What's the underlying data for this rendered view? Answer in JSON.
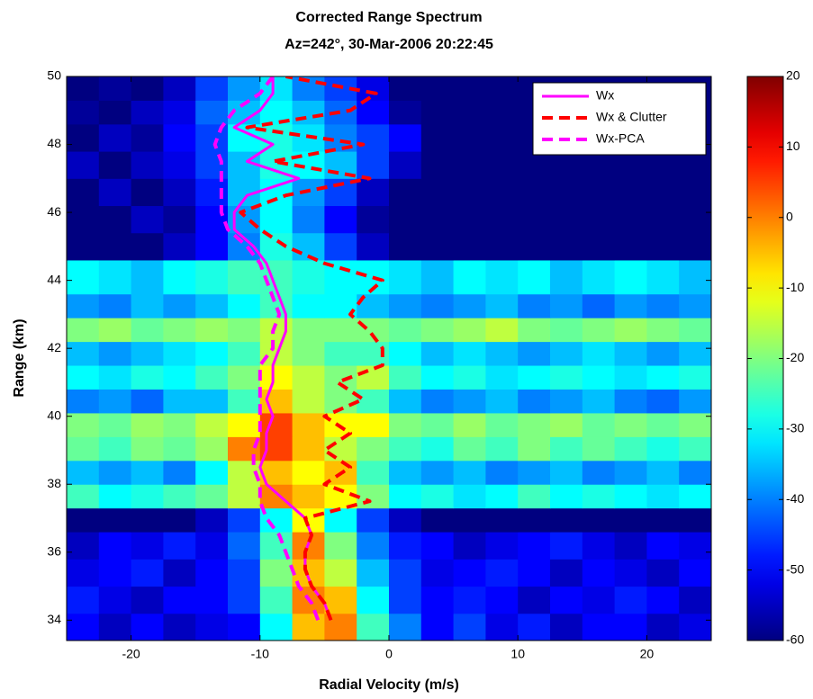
{
  "chart_data": {
    "type": "heatmap",
    "title": "Corrected Range Spectrum",
    "subtitle": "Az=242°, 30-Mar-2006 20:22:45",
    "x_label": "Radial Velocity (m/s)",
    "y_label": "Range (km)",
    "xlim": [
      -25,
      25
    ],
    "xticks": [
      -20,
      -10,
      0,
      10,
      20
    ],
    "ylim": [
      33.4,
      50
    ],
    "yticks": [
      34,
      36,
      38,
      40,
      42,
      44,
      46,
      48,
      50
    ],
    "colormap": "jet",
    "clim": [
      -60,
      20
    ],
    "cticks": [
      -60,
      -50,
      -40,
      -30,
      -20,
      -10,
      0,
      10,
      20
    ],
    "xbins": [
      -25,
      -22.5,
      -20,
      -17.5,
      -15,
      -12.5,
      -10,
      -7.5,
      -5,
      -2.5,
      0,
      2.5,
      5,
      7.5,
      10,
      12.5,
      15,
      17.5,
      20,
      22.5,
      25
    ],
    "ybins": [
      33.4,
      34.2,
      35,
      35.8,
      36.6,
      37.3,
      38,
      38.7,
      39.4,
      40.1,
      40.8,
      41.5,
      42.2,
      42.9,
      43.6,
      44.6,
      45.4,
      46.2,
      47,
      47.8,
      48.6,
      49.3,
      50
    ],
    "z": [
      [
        -50,
        -55,
        -50,
        -55,
        -52,
        -50,
        -30,
        -5,
        0,
        -25,
        -40,
        -50,
        -45,
        -52,
        -48,
        -55,
        -50,
        -50,
        -55,
        -52
      ],
      [
        -48,
        -52,
        -55,
        -50,
        -50,
        -45,
        -25,
        0,
        -5,
        -30,
        -45,
        -50,
        -48,
        -50,
        -55,
        -50,
        -52,
        -48,
        -50,
        -55
      ],
      [
        -52,
        -50,
        -48,
        -55,
        -50,
        -45,
        -20,
        -5,
        -15,
        -35,
        -45,
        -52,
        -50,
        -48,
        -50,
        -55,
        -50,
        -52,
        -55,
        -50
      ],
      [
        -55,
        -50,
        -52,
        -48,
        -52,
        -42,
        -25,
        0,
        -20,
        -40,
        -48,
        -50,
        -55,
        -52,
        -50,
        -48,
        -52,
        -55,
        -50,
        -52
      ],
      [
        -60,
        -60,
        -60,
        -60,
        -55,
        -45,
        -30,
        -10,
        -30,
        -45,
        -55,
        -60,
        -60,
        -60,
        -60,
        -60,
        -60,
        -60,
        -60,
        -60
      ],
      [
        -25,
        -30,
        -28,
        -25,
        -22,
        -15,
        0,
        -5,
        -10,
        -20,
        -30,
        -28,
        -32,
        -30,
        -25,
        -30,
        -28,
        -30,
        -32,
        -30
      ],
      [
        -35,
        -38,
        -35,
        -40,
        -30,
        -15,
        -5,
        -10,
        -5,
        -25,
        -35,
        -38,
        -35,
        -40,
        -38,
        -35,
        -40,
        -38,
        -35,
        -40
      ],
      [
        -22,
        -25,
        -20,
        -22,
        -18,
        0,
        5,
        -5,
        -15,
        -20,
        -25,
        -28,
        -22,
        -25,
        -20,
        -25,
        -22,
        -25,
        -28,
        -25
      ],
      [
        -20,
        -22,
        -18,
        -20,
        -15,
        -10,
        5,
        -5,
        -10,
        -10,
        -20,
        -22,
        -18,
        -22,
        -20,
        -18,
        -22,
        -20,
        -22,
        -20
      ],
      [
        -40,
        -38,
        -42,
        -35,
        -35,
        -25,
        -5,
        -15,
        -20,
        -25,
        -35,
        -40,
        -38,
        -35,
        -40,
        -38,
        -35,
        -40,
        -42,
        -38
      ],
      [
        -30,
        -32,
        -28,
        -30,
        -25,
        -20,
        -10,
        -15,
        -20,
        -15,
        -25,
        -30,
        -28,
        -32,
        -30,
        -28,
        -30,
        -32,
        -30,
        -28
      ],
      [
        -35,
        -38,
        -35,
        -32,
        -30,
        -25,
        -15,
        -20,
        -25,
        -25,
        -30,
        -35,
        -32,
        -35,
        -38,
        -35,
        -32,
        -35,
        -38,
        -35
      ],
      [
        -20,
        -18,
        -22,
        -20,
        -18,
        -20,
        -15,
        -20,
        -20,
        -20,
        -22,
        -20,
        -18,
        -15,
        -20,
        -22,
        -20,
        -18,
        -20,
        -22
      ],
      [
        -38,
        -40,
        -35,
        -38,
        -35,
        -30,
        -25,
        -30,
        -30,
        -35,
        -38,
        -40,
        -38,
        -35,
        -40,
        -38,
        -42,
        -38,
        -40,
        -38
      ],
      [
        -30,
        -32,
        -35,
        -30,
        -28,
        -25,
        -25,
        -28,
        -30,
        -30,
        -32,
        -35,
        -30,
        -32,
        -30,
        -35,
        -32,
        -30,
        -32,
        -35
      ],
      [
        -60,
        -60,
        -60,
        -55,
        -50,
        -40,
        -28,
        -35,
        -45,
        -55,
        -60,
        -60,
        -60,
        -60,
        -60,
        -60,
        -60,
        -60,
        -60,
        -60
      ],
      [
        -60,
        -60,
        -55,
        -58,
        -50,
        -38,
        -30,
        -40,
        -50,
        -58,
        -60,
        -60,
        -60,
        -60,
        -60,
        -60,
        -60,
        -60,
        -60,
        -60
      ],
      [
        -60,
        -55,
        -60,
        -55,
        -48,
        -35,
        -30,
        -38,
        -45,
        -55,
        -60,
        -60,
        -60,
        -60,
        -60,
        -60,
        -60,
        -60,
        -60,
        -60
      ],
      [
        -55,
        -60,
        -55,
        -52,
        -45,
        -35,
        -28,
        -30,
        -35,
        -45,
        -55,
        -60,
        -60,
        -60,
        -60,
        -60,
        -60,
        -60,
        -60,
        -60
      ],
      [
        -60,
        -55,
        -58,
        -50,
        -45,
        -30,
        -28,
        -32,
        -40,
        -45,
        -50,
        -60,
        -60,
        -60,
        -60,
        -60,
        -60,
        -60,
        -60,
        -60
      ],
      [
        -58,
        -60,
        -55,
        -52,
        -42,
        -35,
        -30,
        -35,
        -42,
        -50,
        -58,
        -60,
        -60,
        -60,
        -60,
        -60,
        -60,
        -60,
        -60,
        -60
      ],
      [
        -60,
        -58,
        -60,
        -55,
        -45,
        -38,
        -32,
        -40,
        -45,
        -52,
        -60,
        -60,
        -60,
        -60,
        -60,
        -60,
        -60,
        -60,
        -60,
        -60
      ]
    ],
    "y": [
      34,
      34.5,
      35,
      35.5,
      36,
      36.5,
      37,
      37.5,
      38,
      38.5,
      39,
      39.5,
      40,
      40.5,
      41,
      41.5,
      42,
      42.5,
      43,
      43.5,
      44,
      44.5,
      45,
      45.5,
      46,
      46.5,
      47,
      47.5,
      48,
      48.5,
      49,
      49.5,
      50
    ],
    "series": [
      {
        "name": "Wx",
        "color": "#ff00ff",
        "linestyle": "solid",
        "values": [
          -4.5,
          -5,
          -6,
          -6.5,
          -6.5,
          -6,
          -6.5,
          -8,
          -9.5,
          -10,
          -9.5,
          -9.5,
          -9,
          -9.5,
          -9,
          -9,
          -8.5,
          -8,
          -8,
          -8.5,
          -9,
          -9.5,
          -10.5,
          -12,
          -12,
          -11,
          -7,
          -11,
          -9,
          -12,
          -10,
          -9,
          -9
        ]
      },
      {
        "name": "Wx & Clutter",
        "color": "#ff0000",
        "linestyle": "dashed",
        "values": [
          -4.5,
          -5,
          -6,
          -6.5,
          -6.5,
          -6,
          -6.5,
          -1.5,
          -5,
          -3,
          -5,
          -3,
          -5,
          -2,
          -4,
          -0.5,
          -0.5,
          -1.5,
          -3,
          -2,
          -0.5,
          -5,
          -8,
          -10,
          -11.5,
          -8,
          -1.5,
          -9,
          -2,
          -11,
          -3,
          -1,
          -8
        ]
      },
      {
        "name": "Wx-PCA",
        "color": "#ff00ff",
        "linestyle": "dashed",
        "values": [
          -5.5,
          -6,
          -7,
          -7.5,
          -8,
          -8.5,
          -9.5,
          -10,
          -10,
          -10.5,
          -10.5,
          -10,
          -10,
          -10,
          -10,
          -10,
          -9,
          -9,
          -8.5,
          -9,
          -9.5,
          -10,
          -11,
          -12.5,
          -13,
          -13,
          -13,
          -13,
          -13.5,
          -13,
          -12,
          -10,
          -9
        ]
      }
    ],
    "legend": "upper right"
  }
}
